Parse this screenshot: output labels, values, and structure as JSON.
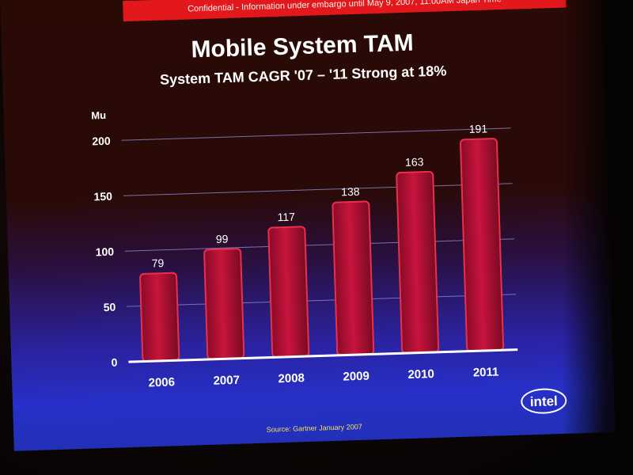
{
  "banner": "Confidential - Information under embargo until May 9, 2007, 11:00AM Japan Time",
  "source": "Source: Gartner January 2007",
  "logo_text": "intel",
  "colors": {
    "bar_fill": "#c8143c",
    "bar_edge": "#e8304c",
    "gridline": "#8a8ad0",
    "text": "#ffffff",
    "banner": "#e3181d"
  },
  "chart_data": {
    "type": "bar",
    "title": "Mobile System TAM",
    "subtitle": "System TAM CAGR '07 – '11 Strong at 18%",
    "ylabel": "Mu",
    "xlabel": "",
    "categories": [
      "2006",
      "2007",
      "2008",
      "2009",
      "2010",
      "2011"
    ],
    "values": [
      79,
      99,
      117,
      138,
      163,
      191
    ],
    "ylim": [
      0,
      200
    ],
    "yticks": [
      0,
      50,
      100,
      150,
      200
    ],
    "grid": true,
    "legend": "none"
  }
}
